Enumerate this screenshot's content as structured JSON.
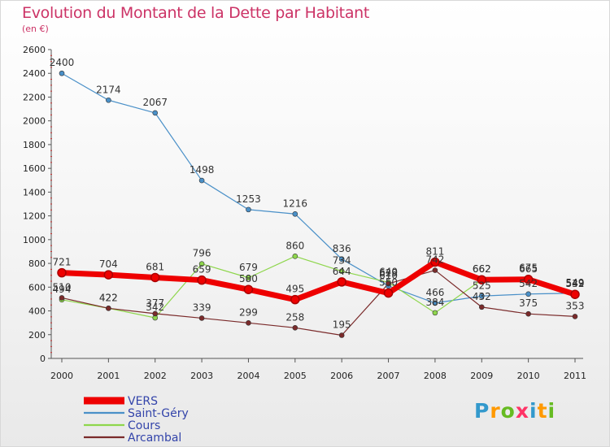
{
  "header": {
    "title": "Evolution du Montant de la Dette par Habitant",
    "unit": "(en €)"
  },
  "logo": {
    "text": "Proxiti",
    "colors": [
      "#3399cc",
      "#ff9900",
      "#66bb22",
      "#ff3366",
      "#3399cc",
      "#ff9900",
      "#66bb22"
    ]
  },
  "chart_data": {
    "type": "line",
    "title": "Evolution du Montant de la Dette par Habitant",
    "ylabel": "(en €)",
    "xlabel": "",
    "x": [
      "2000",
      "2001",
      "2002",
      "2003",
      "2004",
      "2005",
      "2006",
      "2007",
      "2008",
      "2009",
      "2010",
      "2011"
    ],
    "ylim": [
      0,
      2600
    ],
    "yticks": [
      0,
      200,
      400,
      600,
      800,
      1000,
      1200,
      1400,
      1600,
      1800,
      2000,
      2200,
      2400,
      2600
    ],
    "grid": false,
    "legend_position": "bottom-left",
    "series": [
      {
        "name": "Saint-Géry",
        "color": "#4a90c8",
        "width": 1.2,
        "values": [
          2400,
          2174,
          2067,
          1498,
          1253,
          1216,
          836,
          610,
          466,
          525,
          542,
          549
        ]
      },
      {
        "name": "Cours",
        "color": "#8ed64c",
        "width": 1.2,
        "values": [
          494,
          422,
          342,
          796,
          679,
          860,
          734,
          640,
          384,
          662,
          675,
          542
        ]
      },
      {
        "name": "Arcambal",
        "color": "#7a2a2a",
        "width": 1.2,
        "values": [
          510,
          422,
          377,
          339,
          299,
          258,
          195,
          629,
          742,
          432,
          375,
          353
        ]
      },
      {
        "name": "VERS",
        "color": "#ee0000",
        "width": 7,
        "values": [
          721,
          704,
          681,
          659,
          580,
          495,
          644,
          550,
          811,
          662,
          665,
          539
        ]
      }
    ],
    "legend": [
      "VERS",
      "Saint-Géry",
      "Cours",
      "Arcambal"
    ]
  }
}
